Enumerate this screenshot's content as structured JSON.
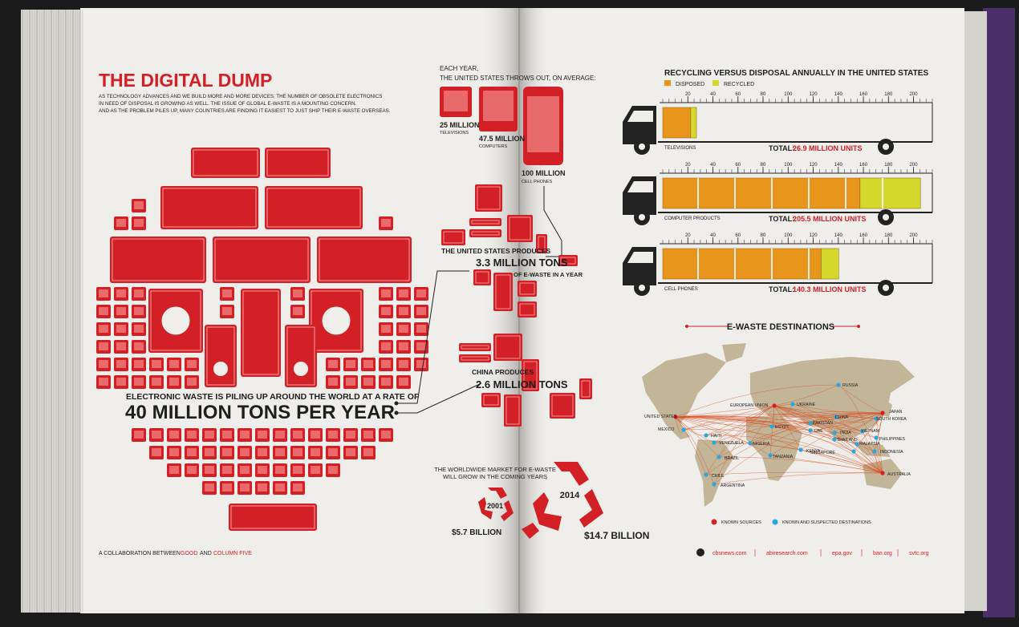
{
  "left_page": {
    "title": "THE DIGITAL DUMP",
    "intro": [
      "AS TECHNOLOGY ADVANCES AND WE BUILD MORE AND MORE DEVICES, THE NUMBER OF OBSOLETE ELECTRONICS",
      "IN NEED OF DISPOSAL IS GROWING AS WELL. THE ISSUE OF GLOBAL E-WASTE IS A MOUNTING CONCERN.",
      "AND AS THE PROBLEM PILES UP, MANY COUNTRIES ARE FINDING IT EASIEST TO JUST SHIP THEIR E-WASTE OVERSEAS."
    ],
    "rate_lead": "ELECTRONIC WASTE IS PILING UP AROUND THE WORLD AT A RATE OF",
    "rate_value": "40 MILLION TONS PER YEAR",
    "credit": {
      "lead": "A COLLABORATION BETWEEN",
      "partner_1": "GOOD",
      "joiner": "AND",
      "partner_2": "COLUMN FIVE"
    }
  },
  "annual": {
    "heading": [
      "EACH YEAR,",
      "THE UNITED STATES THROWS OUT, ON AVERAGE:"
    ],
    "items": [
      {
        "value": "25 MILLION",
        "label": "TELEVISIONS"
      },
      {
        "value": "47.5 MILLION",
        "label": "COMPUTERS"
      },
      {
        "value": "100 MILLION",
        "label": "CELL PHONES"
      }
    ]
  },
  "us_produces": {
    "lead": "THE UNITED STATES PRODUCES",
    "value": "3.3 MILLION TONS",
    "tail": "OF E-WASTE IN A YEAR"
  },
  "china_produces": {
    "lead": "CHINA PRODUCES",
    "value": "2.6 MILLION TONS"
  },
  "market": {
    "heading": [
      "THE WORLDWIDE MARKET FOR E-WASTE",
      "WILL GROW IN THE COMING YEARS"
    ],
    "years": [
      {
        "year": "2001",
        "value": "$5.7 BILLION"
      },
      {
        "year": "2014",
        "value": "$14.7 BILLION"
      }
    ]
  },
  "chart_data": {
    "type": "bar",
    "orientation": "horizontal",
    "stacked": true,
    "title": "RECYCLING VERSUS DISPOSAL ANNUALLY IN THE UNITED STATES",
    "categories": [
      "TELEVISIONS",
      "COMPUTER PRODUCTS",
      "CELL PHONES"
    ],
    "series": [
      {
        "name": "DISPOSED",
        "color": "#e8951c",
        "values": [
          22.3,
          157.3,
          126.3
        ]
      },
      {
        "name": "RECYCLED",
        "color": "#d3d82b",
        "values": [
          4.6,
          48.2,
          14.0
        ]
      }
    ],
    "xlim": [
      0,
      215
    ],
    "xticks": [
      20,
      40,
      60,
      80,
      100,
      120,
      140,
      160,
      180,
      200
    ],
    "total_label": "TOTAL:",
    "totals": [
      "26.9 MILLION UNITS",
      "205.5 MILLION UNITS",
      "140.3 MILLION UNITS"
    ]
  },
  "map": {
    "title": "E-WASTE DESTINATIONS",
    "places": [
      "UNITED STATES",
      "MEXICO",
      "HAITI",
      "VENEZUELA",
      "BRAZIL",
      "CHILE",
      "ARGENTINA",
      "EUROPEAN UNION",
      "UKRAINE",
      "RUSSIA",
      "EGYPT",
      "NIGERIA",
      "KENYA",
      "TANZANIA",
      "PAKISTAN",
      "UAE",
      "INDIA",
      "CHINA",
      "THAILAND",
      "VIETNAM",
      "MALAYSIA",
      "SINGAPORE",
      "PHILIPPINES",
      "INDONESIA",
      "JAPAN",
      "SOUTH KOREA",
      "AUSTRALIA"
    ],
    "legend": [
      {
        "label": "KNOWN SOURCES",
        "color": "#d31f26"
      },
      {
        "label": "KNOWN AND SUSPECTED DESTINATIONS",
        "color": "#2aa7df"
      }
    ]
  },
  "sources": [
    "cbsnews.com",
    "abiresearch.com",
    "epa.gov",
    "ban.org",
    "svtc.org"
  ]
}
